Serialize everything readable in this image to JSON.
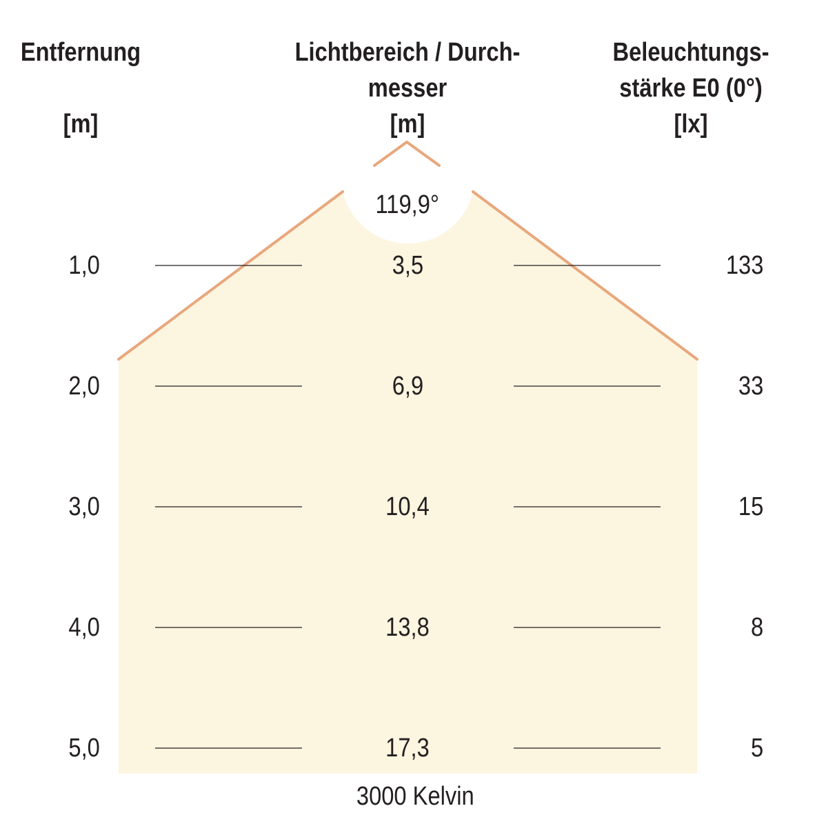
{
  "headers": {
    "distance": {
      "line1": "Entfernung",
      "line2": "",
      "unit": "[m]"
    },
    "diameter": {
      "line1": "Lichtbereich / Durch-",
      "line2": "messer",
      "unit": "[m]"
    },
    "illuminance": {
      "line1": "Beleuchtungs-",
      "line2": "stärke E0 (0°)",
      "unit": "[lx]"
    }
  },
  "beam_angle": "119,9°",
  "rows": [
    {
      "distance": "1,0",
      "diameter": "3,5",
      "lux": "133"
    },
    {
      "distance": "2,0",
      "diameter": "6,9",
      "lux": "33"
    },
    {
      "distance": "3,0",
      "diameter": "10,4",
      "lux": "15"
    },
    {
      "distance": "4,0",
      "diameter": "13,8",
      "lux": "8"
    },
    {
      "distance": "5,0",
      "diameter": "17,3",
      "lux": "5"
    }
  ],
  "color_temperature": "3000 Kelvin",
  "colors": {
    "light_fill": "#fcf5e0",
    "beam_edge": "#e8a77c",
    "rule": "#231f20",
    "text": "#231f20"
  }
}
